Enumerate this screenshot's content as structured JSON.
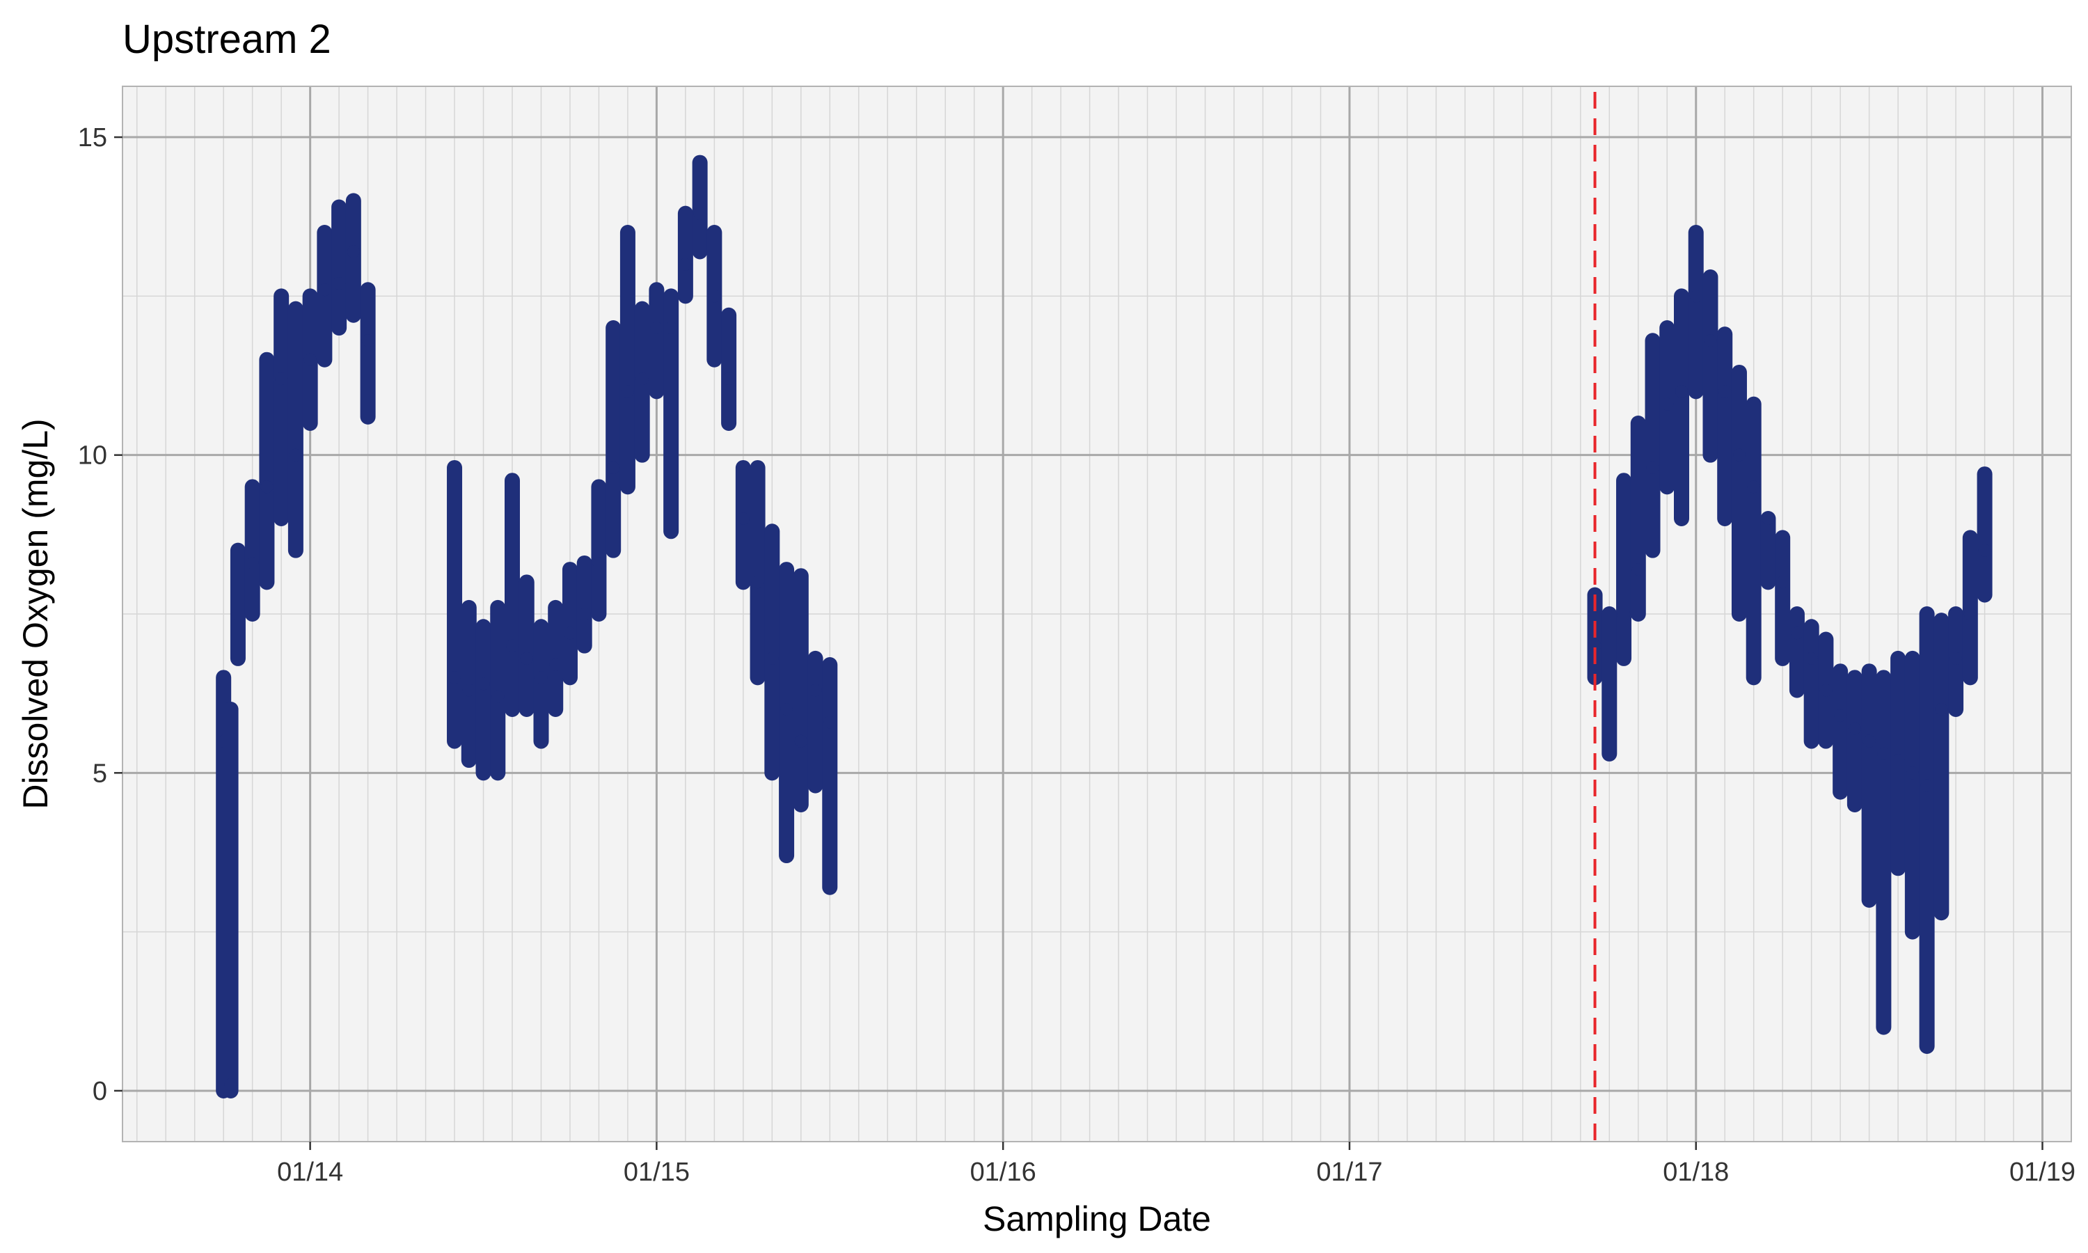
{
  "chart_data": {
    "type": "scatter",
    "title": "Upstream 2",
    "xlabel": "Sampling Date",
    "ylabel": "Dissolved Oxygen (mg/L)",
    "x_ticks": [
      "01/14",
      "01/15",
      "01/16",
      "01/17",
      "01/18",
      "01/19"
    ],
    "y_ticks": [
      "0",
      "5",
      "10",
      "15"
    ],
    "xlim": [
      "01/13 11:00",
      "01/19 02:00"
    ],
    "ylim": [
      -0.8,
      15.8
    ],
    "grid": true,
    "legend": "none",
    "reference_line": {
      "x": "01/17 17:00",
      "style": "dashed",
      "color": "#e8262b"
    },
    "colors": {
      "points": "#1f2f7a",
      "panel": "#f3f3f3",
      "major_grid": "#a8a8a8",
      "minor_grid": "#d6d6d6",
      "reference": "#e8262b"
    },
    "series": [
      {
        "x": [
          "01/13 18:00",
          "01/13 18:30",
          "01/13 19:00",
          "01/13 20:00",
          "01/13 21:00",
          "01/13 22:00",
          "01/13 23:00",
          "01/14 00:00",
          "01/14 01:00",
          "01/14 02:00",
          "01/14 03:00",
          "01/14 04:00"
        ],
        "y": [
          5.5,
          0.1,
          7.5,
          8.3,
          9.5,
          11.2,
          10.0,
          11.5,
          12.6,
          12.7,
          13.2,
          11.8
        ],
        "range": [
          [
            0.0,
            6.5
          ],
          [
            0.0,
            6.0
          ],
          [
            6.8,
            8.5
          ],
          [
            7.5,
            9.5
          ],
          [
            8.0,
            11.5
          ],
          [
            9.0,
            12.5
          ],
          [
            8.5,
            12.3
          ],
          [
            10.5,
            12.5
          ],
          [
            11.5,
            13.5
          ],
          [
            12.0,
            13.9
          ],
          [
            12.2,
            14.0
          ],
          [
            10.6,
            12.6
          ]
        ]
      },
      {
        "x": [
          "01/14 10:00",
          "01/14 11:00",
          "01/14 12:00",
          "01/14 13:00",
          "01/14 14:00",
          "01/14 15:00",
          "01/14 16:00",
          "01/14 17:00",
          "01/14 18:00",
          "01/14 19:00",
          "01/14 20:00",
          "01/14 21:00",
          "01/14 22:00",
          "01/14 23:00",
          "01/15 00:00"
        ],
        "y": [
          6.5,
          6.3,
          6.4,
          6.2,
          7.0,
          6.8,
          6.5,
          6.7,
          7.2,
          7.5,
          8.3,
          9.8,
          11.0,
          11.2,
          12.0
        ],
        "range": [
          [
            5.5,
            9.8
          ],
          [
            5.2,
            7.6
          ],
          [
            5.0,
            7.3
          ],
          [
            5.0,
            7.6
          ],
          [
            6.0,
            9.6
          ],
          [
            6.0,
            8.0
          ],
          [
            5.5,
            7.3
          ],
          [
            6.0,
            7.6
          ],
          [
            6.5,
            8.2
          ],
          [
            7.0,
            8.3
          ],
          [
            7.5,
            9.5
          ],
          [
            8.5,
            12.0
          ],
          [
            9.5,
            13.5
          ],
          [
            10.0,
            12.3
          ],
          [
            11.0,
            12.6
          ]
        ]
      },
      {
        "x": [
          "01/15 01:00",
          "01/15 02:00",
          "01/15 03:00",
          "01/15 04:00",
          "01/15 05:00",
          "01/15 06:00",
          "01/15 07:00",
          "01/15 08:00",
          "01/15 09:00",
          "01/15 10:00",
          "01/15 11:00",
          "01/15 12:00"
        ],
        "y": [
          12.0,
          13.0,
          13.8,
          12.5,
          11.2,
          9.0,
          8.0,
          6.8,
          6.0,
          5.5,
          6.3,
          5.8
        ],
        "range": [
          [
            8.8,
            12.5
          ],
          [
            12.5,
            13.8
          ],
          [
            13.2,
            14.6
          ],
          [
            11.5,
            13.5
          ],
          [
            10.5,
            12.2
          ],
          [
            8.0,
            9.8
          ],
          [
            6.5,
            9.8
          ],
          [
            5.0,
            8.8
          ],
          [
            3.7,
            8.2
          ],
          [
            4.5,
            8.1
          ],
          [
            4.8,
            6.8
          ],
          [
            3.2,
            6.7
          ]
        ]
      },
      {
        "x": [
          "01/17 17:00",
          "01/17 18:00",
          "01/17 19:00",
          "01/17 20:00",
          "01/17 21:00",
          "01/17 22:00",
          "01/17 23:00",
          "01/18 00:00",
          "01/18 01:00",
          "01/18 02:00",
          "01/18 03:00",
          "01/18 04:00",
          "01/18 05:00",
          "01/18 06:00",
          "01/18 07:00",
          "01/18 08:00",
          "01/18 09:00",
          "01/18 10:00",
          "01/18 11:00",
          "01/18 12:00",
          "01/18 13:00",
          "01/18 14:00",
          "01/18 15:00",
          "01/18 16:00",
          "01/18 17:00",
          "01/18 18:00",
          "01/18 19:00",
          "01/18 20:00"
        ],
        "y": [
          7.0,
          6.3,
          7.5,
          8.2,
          9.8,
          10.8,
          11.0,
          12.5,
          11.8,
          11.0,
          10.0,
          9.5,
          9.0,
          8.0,
          7.2,
          6.8,
          6.3,
          5.9,
          5.7,
          5.5,
          5.3,
          5.2,
          5.0,
          4.8,
          6.0,
          6.8,
          7.5,
          8.5
        ],
        "range": [
          [
            6.5,
            7.8
          ],
          [
            5.3,
            7.5
          ],
          [
            6.8,
            9.6
          ],
          [
            7.5,
            10.5
          ],
          [
            8.5,
            11.8
          ],
          [
            9.5,
            12.0
          ],
          [
            9.0,
            12.5
          ],
          [
            11.0,
            13.5
          ],
          [
            10.0,
            12.8
          ],
          [
            9.0,
            11.9
          ],
          [
            7.5,
            11.3
          ],
          [
            6.5,
            10.8
          ],
          [
            8.0,
            9.0
          ],
          [
            6.8,
            8.7
          ],
          [
            6.3,
            7.5
          ],
          [
            5.5,
            7.3
          ],
          [
            5.5,
            7.1
          ],
          [
            4.7,
            6.6
          ],
          [
            4.5,
            6.5
          ],
          [
            3.0,
            6.6
          ],
          [
            1.0,
            6.5
          ],
          [
            3.5,
            6.8
          ],
          [
            2.5,
            6.8
          ],
          [
            0.7,
            7.5
          ],
          [
            2.8,
            7.4
          ],
          [
            6.0,
            7.5
          ],
          [
            6.5,
            8.7
          ],
          [
            7.8,
            9.7
          ]
        ]
      }
    ]
  }
}
